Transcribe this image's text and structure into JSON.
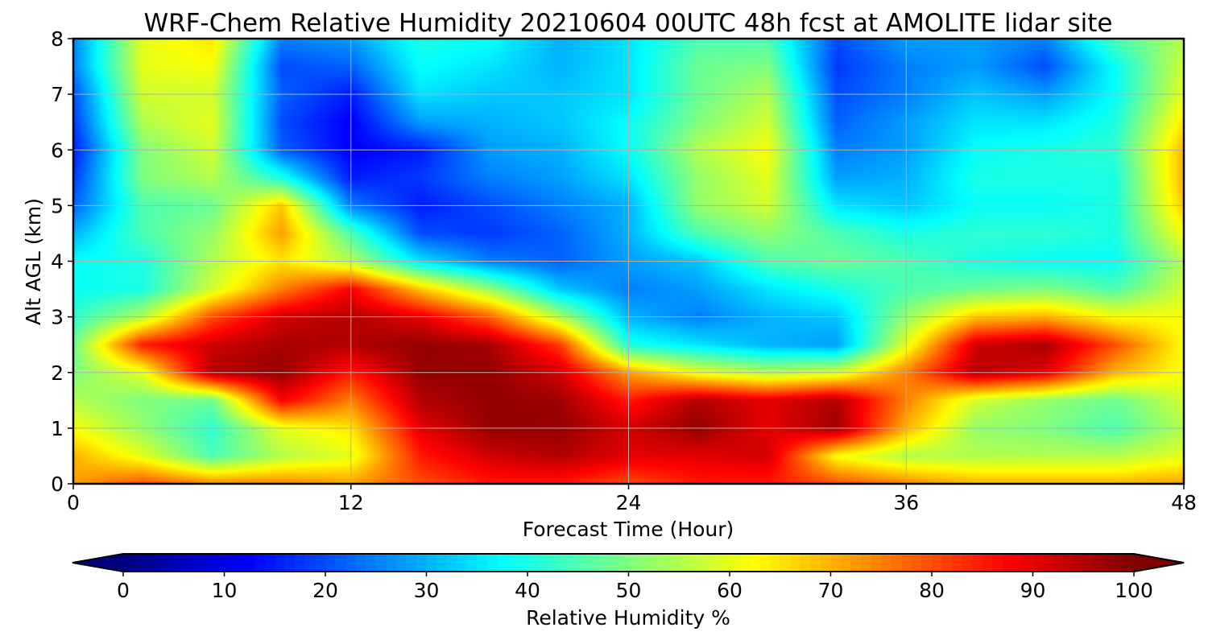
{
  "chart_data": {
    "type": "heatmap",
    "title": "WRF-Chem Relative Humidity 20210604 00UTC 48h fcst at AMOLITE lidar site",
    "xlabel": "Forecast Time (Hour)",
    "ylabel": "Alt AGL (km)",
    "xlim": [
      0,
      48
    ],
    "ylim": [
      0,
      8
    ],
    "xticks": [
      0,
      12,
      24,
      36,
      48
    ],
    "yticks": [
      0,
      1,
      2,
      3,
      4,
      5,
      6,
      7,
      8
    ],
    "grid": true,
    "colormap": "jet",
    "colorbar": {
      "label": "Relative Humidity %",
      "orientation": "horizontal",
      "placement": "bottom",
      "extend": "both",
      "range": [
        0,
        100
      ],
      "ticks": [
        0,
        10,
        20,
        30,
        40,
        50,
        60,
        70,
        80,
        90,
        100
      ],
      "under_color": "#00007f",
      "over_color": "#7f0000"
    },
    "x": [
      0,
      3,
      6,
      9,
      12,
      15,
      18,
      21,
      24,
      27,
      30,
      33,
      36,
      39,
      42,
      45,
      48
    ],
    "y": [
      0,
      0.5,
      1,
      1.5,
      2,
      2.5,
      3,
      3.5,
      4,
      4.5,
      5,
      5.5,
      6,
      6.5,
      7,
      7.5,
      8
    ],
    "values": [
      [
        72,
        80,
        75,
        75,
        72,
        80,
        85,
        85,
        80,
        85,
        85,
        80,
        75,
        70,
        70,
        70,
        72
      ],
      [
        70,
        60,
        45,
        55,
        60,
        85,
        92,
        95,
        90,
        90,
        92,
        62,
        55,
        55,
        55,
        55,
        60
      ],
      [
        62,
        52,
        42,
        60,
        65,
        90,
        98,
        98,
        92,
        98,
        90,
        97,
        70,
        52,
        50,
        45,
        55
      ],
      [
        55,
        50,
        48,
        88,
        75,
        95,
        98,
        97,
        85,
        95,
        90,
        95,
        75,
        58,
        52,
        48,
        58
      ],
      [
        50,
        60,
        95,
        98,
        85,
        98,
        98,
        92,
        72,
        60,
        55,
        58,
        75,
        95,
        90,
        70,
        62
      ],
      [
        48,
        85,
        92,
        96,
        95,
        98,
        96,
        82,
        40,
        35,
        30,
        28,
        60,
        92,
        96,
        80,
        62
      ],
      [
        42,
        55,
        80,
        92,
        95,
        90,
        78,
        55,
        30,
        25,
        30,
        32,
        52,
        68,
        70,
        62,
        62
      ],
      [
        38,
        40,
        58,
        75,
        88,
        68,
        52,
        32,
        25,
        28,
        35,
        40,
        45,
        48,
        50,
        45,
        58
      ],
      [
        38,
        40,
        55,
        65,
        55,
        35,
        25,
        22,
        28,
        32,
        45,
        48,
        45,
        40,
        38,
        38,
        55
      ],
      [
        30,
        45,
        52,
        72,
        45,
        20,
        18,
        22,
        30,
        45,
        52,
        45,
        40,
        42,
        42,
        40,
        62
      ],
      [
        22,
        45,
        48,
        68,
        25,
        15,
        20,
        25,
        30,
        52,
        58,
        35,
        32,
        38,
        38,
        40,
        68
      ],
      [
        18,
        50,
        55,
        40,
        15,
        18,
        25,
        28,
        35,
        52,
        60,
        28,
        30,
        40,
        40,
        40,
        70
      ],
      [
        15,
        50,
        58,
        22,
        12,
        15,
        28,
        30,
        38,
        55,
        62,
        25,
        28,
        38,
        40,
        42,
        70
      ],
      [
        18,
        55,
        60,
        20,
        12,
        28,
        30,
        32,
        38,
        50,
        58,
        22,
        28,
        35,
        35,
        40,
        65
      ],
      [
        20,
        58,
        58,
        22,
        15,
        35,
        32,
        32,
        35,
        48,
        55,
        20,
        25,
        32,
        28,
        38,
        60
      ],
      [
        25,
        60,
        62,
        20,
        22,
        38,
        35,
        30,
        35,
        48,
        50,
        18,
        25,
        28,
        20,
        38,
        58
      ],
      [
        25,
        60,
        65,
        25,
        28,
        40,
        38,
        30,
        35,
        45,
        45,
        20,
        28,
        28,
        25,
        45,
        55
      ]
    ]
  }
}
